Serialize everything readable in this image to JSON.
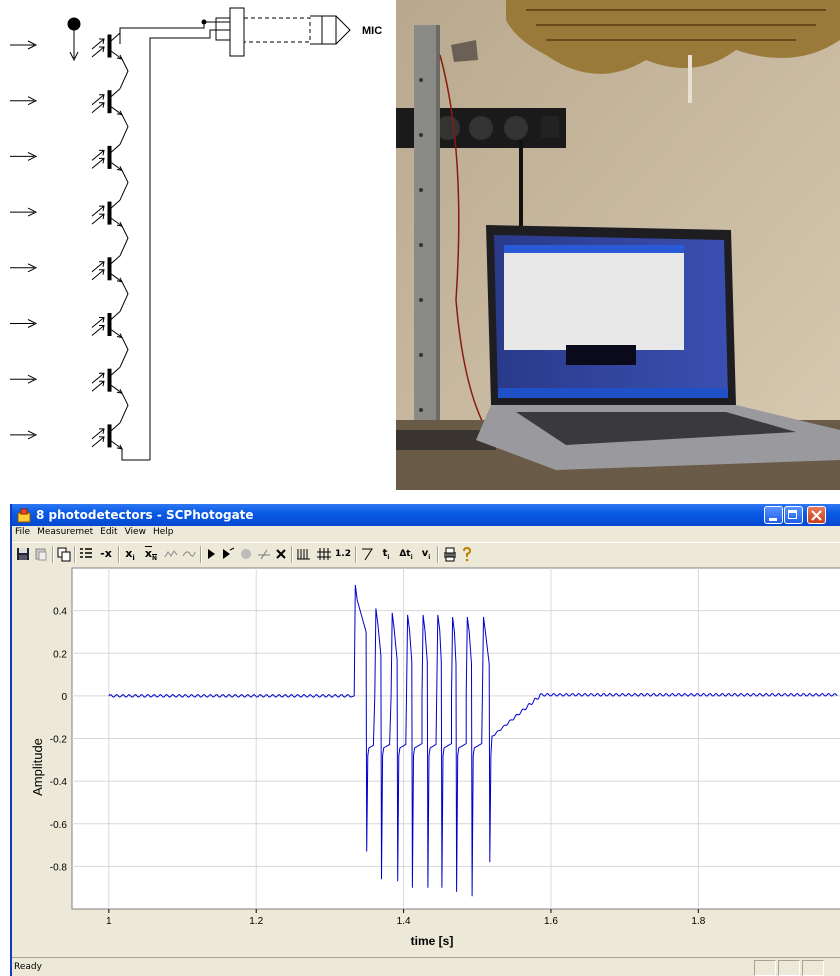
{
  "circuit": {
    "output_label": "MIC",
    "detector_count": 8
  },
  "window": {
    "title": "8 photodetectors - SCPhotogate",
    "menu": [
      "File",
      "Measuremet",
      "Edit",
      "View",
      "Help"
    ],
    "toolbar": {
      "remove_label": "-x",
      "xi_label": "x",
      "xi_sub": "i",
      "xn_label": "x",
      "xn_sub": "N",
      "scale_label": "1.2",
      "ti_label": "t",
      "ti_sub": "i",
      "dti_label": "Δt",
      "dti_sub": "i",
      "vi_label": "v",
      "vi_sub": "i"
    },
    "status": "Ready"
  },
  "chart_data": {
    "type": "line",
    "xlabel": "time [s]",
    "ylabel": "Amplitude",
    "xlim": [
      0.95,
      1.995
    ],
    "ylim": [
      -1.0,
      0.6
    ],
    "xticks": [
      1,
      1.2,
      1.4,
      1.6,
      1.8
    ],
    "xtick_labels": [
      "1",
      "1.2",
      "1.4",
      "1.6",
      "1.8"
    ],
    "yticks": [
      0.4,
      0.2,
      0,
      -0.2,
      -0.4,
      -0.6,
      -0.8
    ],
    "ytick_labels": [
      "0.4",
      "0.2",
      "0",
      "-0.2",
      "-0.4",
      "-0.6",
      "-0.8"
    ],
    "grid": true,
    "series_color": "#0000cc",
    "baseline_start": [
      1.0,
      1.33
    ],
    "baseline_end": [
      1.585,
      1.99
    ],
    "pulses": [
      {
        "start": 1.333,
        "peak": 0.52,
        "end": 1.35,
        "trough": -0.73
      },
      {
        "start": 1.361,
        "peak": 0.41,
        "end": 1.37,
        "trough": -0.86
      },
      {
        "start": 1.383,
        "peak": 0.39,
        "end": 1.392,
        "trough": -0.87
      },
      {
        "start": 1.404,
        "peak": 0.38,
        "end": 1.412,
        "trough": -0.9
      },
      {
        "start": 1.425,
        "peak": 0.38,
        "end": 1.433,
        "trough": -0.9
      },
      {
        "start": 1.445,
        "peak": 0.38,
        "end": 1.452,
        "trough": -0.9
      },
      {
        "start": 1.465,
        "peak": 0.37,
        "end": 1.472,
        "trough": -0.92
      },
      {
        "start": 1.485,
        "peak": 0.37,
        "end": 1.493,
        "trough": -0.94
      },
      {
        "start": 1.507,
        "peak": 0.37,
        "end": 1.517,
        "trough": -0.78
      }
    ]
  }
}
